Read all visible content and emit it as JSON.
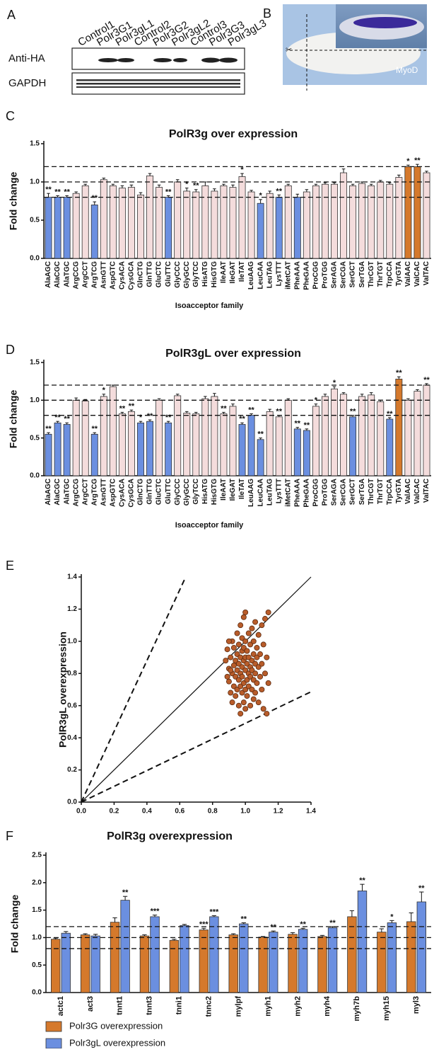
{
  "blot": {
    "panel": "A",
    "lanes": [
      "Control1",
      "Polr3G1",
      "Polr3gL1",
      "Control2",
      "Polr3G2",
      "Polr3gL2",
      "Control3",
      "Polr3G3",
      "Polr3gL3"
    ],
    "rows": [
      "Anti-HA",
      "GAPDH"
    ]
  },
  "embryo": {
    "panel": "B",
    "label": "MyoD"
  },
  "chart_data": [
    {
      "type": "bar",
      "panel": "C",
      "title": "PolR3g over expression",
      "y_label": "Fold change",
      "x_label": "Isoacceptor family",
      "categories": [
        "AlaAGC",
        "AlaCGC",
        "AlaTGC",
        "ArgCCG",
        "ArgCCT",
        "ArgTCG",
        "AsnGTT",
        "AspGTC",
        "CysACA",
        "CysGCA",
        "GlnCTG",
        "GlnTTG",
        "GluCTC",
        "GluTTC",
        "GlyCCC",
        "GlyGCC",
        "GlyTCC",
        "HisATG",
        "HisGTG",
        "IleAAT",
        "IleGAT",
        "IleTAT",
        "LeuAAG",
        "LeuCAA",
        "LeuTAG",
        "LysTTT",
        "iMetCAT",
        "PheAAA",
        "PheGAA",
        "ProCGG",
        "ProTGG",
        "SerAGA",
        "SerCGA",
        "SerGCT",
        "SerTGA",
        "ThrCGT",
        "ThrTGT",
        "TrpCCA",
        "TyrGTA",
        "ValAAC",
        "ValCAC",
        "ValTAC"
      ],
      "values": [
        0.8,
        0.8,
        0.8,
        0.85,
        0.95,
        0.7,
        1.03,
        0.95,
        0.92,
        0.93,
        0.83,
        1.08,
        0.93,
        0.8,
        1.0,
        0.88,
        0.87,
        0.95,
        0.88,
        0.95,
        0.93,
        1.07,
        0.87,
        0.72,
        0.85,
        0.8,
        0.95,
        0.8,
        0.87,
        0.95,
        0.97,
        0.97,
        1.12,
        0.95,
        0.98,
        0.95,
        1.0,
        0.97,
        1.06,
        1.2,
        1.2,
        1.12
      ],
      "errors": [
        0.05,
        0.02,
        0.02,
        0.02,
        0.02,
        0.04,
        0.02,
        0.02,
        0.03,
        0.03,
        0.03,
        0.03,
        0.03,
        0.02,
        0.03,
        0.04,
        0.03,
        0.05,
        0.03,
        0.02,
        0.03,
        0.04,
        0.02,
        0.05,
        0.03,
        0.03,
        0.02,
        0.04,
        0.03,
        0.02,
        0.02,
        0.02,
        0.05,
        0.02,
        0.02,
        0.02,
        0.02,
        0.02,
        0.03,
        0.02,
        0.03,
        0.02
      ],
      "significance": [
        "**",
        "**",
        "**",
        null,
        null,
        "**",
        null,
        null,
        null,
        null,
        null,
        null,
        null,
        "**",
        null,
        "*",
        "**",
        null,
        null,
        null,
        null,
        "*",
        null,
        "*",
        null,
        "**",
        null,
        null,
        null,
        null,
        null,
        null,
        null,
        null,
        null,
        null,
        null,
        null,
        null,
        "*",
        "**",
        null
      ],
      "colors": [
        "#6b8fe0",
        "#6b8fe0",
        "#6b8fe0",
        "#f4dcdc",
        "#f4dcdc",
        "#6b8fe0",
        "#f4dcdc",
        "#f4dcdc",
        "#f4dcdc",
        "#f4dcdc",
        "#f4dcdc",
        "#f4dcdc",
        "#f4dcdc",
        "#6b8fe0",
        "#f4dcdc",
        "#f4dcdc",
        "#f4dcdc",
        "#f4dcdc",
        "#f4dcdc",
        "#f4dcdc",
        "#f4dcdc",
        "#f4dcdc",
        "#f4dcdc",
        "#6b8fe0",
        "#f4dcdc",
        "#6b8fe0",
        "#f4dcdc",
        "#6b8fe0",
        "#f4dcdc",
        "#f4dcdc",
        "#f4dcdc",
        "#f4dcdc",
        "#f4dcdc",
        "#f4dcdc",
        "#f4dcdc",
        "#f4dcdc",
        "#f4dcdc",
        "#f4dcdc",
        "#f4dcdc",
        "#d5792c",
        "#d5792c",
        "#f4dcdc"
      ],
      "ylim": [
        0,
        1.5
      ],
      "yticks": [
        {
          "value": 0,
          "label": "0.0"
        },
        0.5,
        {
          "value": 1,
          "label": "1.0"
        },
        1.5
      ],
      "reference_lines": [
        0.8,
        1,
        1.2
      ]
    },
    {
      "type": "bar",
      "panel": "D",
      "title": "PolR3gL over expression",
      "y_label": "Fold change",
      "x_label": "Isoacceptor family",
      "categories": [
        "AlaAGC",
        "AlaCGC",
        "AlaTGC",
        "ArgCCG",
        "ArgCCT",
        "ArgTCG",
        "AsnGTT",
        "AspGTC",
        "CysACA",
        "CysGCA",
        "GlnCTG",
        "GlnTTG",
        "GluCTC",
        "GluTTC",
        "GlyCCC",
        "GlyGCC",
        "GlyTCC",
        "HisATG",
        "HisGTG",
        "IleAAT",
        "IleGAT",
        "IleTAT",
        "LeuAAG",
        "LeuCAA",
        "LeuTAG",
        "LysTTT",
        "iMetCAT",
        "PheAAA",
        "PheGAA",
        "ProCGG",
        "ProTGG",
        "SerAGA",
        "SerCGA",
        "SerGCT",
        "SerTGA",
        "ThrCGT",
        "ThrTGT",
        "TrpCCA",
        "TyrGTA",
        "ValAAC",
        "ValCAC",
        "ValTAC"
      ],
      "values": [
        0.55,
        0.7,
        0.68,
        1.0,
        0.99,
        0.55,
        1.05,
        1.18,
        0.82,
        0.85,
        0.7,
        0.72,
        1.0,
        0.7,
        1.06,
        0.83,
        0.82,
        1.02,
        1.05,
        0.82,
        0.92,
        0.68,
        0.8,
        0.48,
        0.85,
        0.78,
        1.0,
        0.62,
        0.6,
        0.92,
        1.05,
        1.15,
        1.08,
        0.78,
        1.05,
        1.07,
        0.98,
        0.75,
        1.28,
        1.0,
        1.12,
        1.2
      ],
      "errors": [
        0.02,
        0.02,
        0.02,
        0.03,
        0.02,
        0.02,
        0.03,
        0.02,
        0.02,
        0.02,
        0.02,
        0.02,
        0.02,
        0.02,
        0.02,
        0.02,
        0.02,
        0.03,
        0.04,
        0.02,
        0.03,
        0.02,
        0.02,
        0.02,
        0.03,
        0.02,
        0.02,
        0.02,
        0.02,
        0.03,
        0.03,
        0.03,
        0.02,
        0.02,
        0.03,
        0.03,
        0.02,
        0.02,
        0.03,
        0.02,
        0.02,
        0.02
      ],
      "significance": [
        "**",
        "**",
        "**",
        null,
        null,
        "**",
        "*",
        null,
        "**",
        "**",
        "*",
        "**",
        null,
        "**",
        null,
        null,
        null,
        null,
        null,
        "**",
        null,
        "**",
        "**",
        "**",
        null,
        "**",
        null,
        "**",
        "**",
        "*",
        null,
        "*",
        null,
        "**",
        null,
        null,
        null,
        "**",
        "**",
        null,
        null,
        "**"
      ],
      "colors": [
        "#6b8fe0",
        "#6b8fe0",
        "#6b8fe0",
        "#f4dcdc",
        "#f4dcdc",
        "#6b8fe0",
        "#f4dcdc",
        "#f4dcdc",
        "#f4dcdc",
        "#f4dcdc",
        "#6b8fe0",
        "#6b8fe0",
        "#f4dcdc",
        "#6b8fe0",
        "#f4dcdc",
        "#f4dcdc",
        "#f4dcdc",
        "#f4dcdc",
        "#f4dcdc",
        "#f4dcdc",
        "#f4dcdc",
        "#6b8fe0",
        "#6b8fe0",
        "#6b8fe0",
        "#f4dcdc",
        "#f4dcdc",
        "#f4dcdc",
        "#6b8fe0",
        "#6b8fe0",
        "#f4dcdc",
        "#f4dcdc",
        "#f4dcdc",
        "#f4dcdc",
        "#6b8fe0",
        "#f4dcdc",
        "#f4dcdc",
        "#f4dcdc",
        "#6b8fe0",
        "#d5792c",
        "#f4dcdc",
        "#f4dcdc",
        "#f4dcdc"
      ],
      "ylim": [
        0,
        1.5
      ],
      "yticks": [
        {
          "value": 0,
          "label": "0.0"
        },
        0.5,
        {
          "value": 1,
          "label": "1.0"
        },
        1.5
      ],
      "reference_lines": [
        0.8,
        1,
        1.2
      ]
    },
    {
      "type": "scatter",
      "panel": "E",
      "y_label": "PolR3gL overexpression",
      "color": "#b85c2a",
      "x": [
        0.88,
        0.89,
        0.9,
        0.9,
        0.91,
        0.91,
        0.92,
        0.92,
        0.92,
        0.93,
        0.93,
        0.93,
        0.94,
        0.94,
        0.94,
        0.95,
        0.95,
        0.95,
        0.95,
        0.96,
        0.96,
        0.96,
        0.96,
        0.97,
        0.97,
        0.97,
        0.97,
        0.97,
        0.98,
        0.98,
        0.98,
        0.98,
        0.98,
        0.99,
        0.99,
        0.99,
        0.99,
        0.99,
        1.0,
        1.0,
        1.0,
        1.0,
        1.0,
        1.0,
        1.01,
        1.01,
        1.01,
        1.01,
        1.02,
        1.02,
        1.02,
        1.02,
        1.03,
        1.03,
        1.03,
        1.03,
        1.04,
        1.04,
        1.04,
        1.04,
        1.05,
        1.05,
        1.05,
        1.05,
        1.06,
        1.06,
        1.06,
        1.06,
        1.07,
        1.07,
        1.07,
        1.08,
        1.08,
        1.08,
        1.09,
        1.09,
        1.1,
        1.1,
        1.1,
        1.11,
        1.11,
        1.12,
        1.12,
        1.13,
        1.13,
        1.14,
        1.14,
        0.89,
        0.9,
        0.91
      ],
      "y": [
        0.88,
        0.95,
        0.83,
        0.75,
        0.9,
        0.68,
        0.8,
        1.0,
        0.62,
        0.85,
        0.72,
        0.96,
        0.78,
        0.88,
        0.66,
        0.92,
        0.82,
        0.7,
        1.05,
        0.76,
        0.86,
        0.6,
        0.98,
        0.8,
        0.9,
        0.72,
        1.1,
        0.55,
        0.84,
        0.94,
        0.68,
        1.02,
        0.78,
        0.88,
        0.74,
        0.62,
        1.15,
        0.96,
        0.82,
        0.7,
        0.9,
        1.0,
        0.58,
        1.18,
        0.86,
        0.76,
        0.94,
        0.66,
        0.8,
        1.05,
        0.72,
        0.9,
        0.84,
        0.6,
        0.98,
        0.78,
        0.88,
        0.7,
        1.08,
        0.82,
        0.92,
        0.64,
        0.76,
        1.0,
        0.86,
        0.8,
        0.68,
        1.12,
        0.9,
        0.74,
        0.96,
        0.84,
        0.62,
        1.04,
        0.78,
        0.92,
        0.7,
        1.1,
        0.86,
        0.58,
        0.98,
        0.8,
        1.14,
        0.9,
        0.55,
        1.18,
        0.74,
        0.78,
        1.0,
        0.82
      ],
      "xlim": [
        0,
        1.4
      ],
      "ylim": [
        0,
        1.4
      ],
      "xticks": [
        {
          "value": 0,
          "label": "0.0"
        },
        0.2,
        0.4,
        0.6,
        0.8,
        {
          "value": 1,
          "label": "1.0"
        },
        1.2,
        1.4
      ],
      "yticks": [
        {
          "value": 0,
          "label": "0.0"
        },
        0.2,
        0.4,
        0.6,
        0.8,
        {
          "value": 1,
          "label": "1.0"
        },
        1.2,
        1.4
      ],
      "reference_lines": [
        {
          "slope": 2.2,
          "style": "dashed"
        },
        {
          "slope": 1,
          "style": "solid"
        },
        {
          "slope": 0.49,
          "style": "dashed"
        }
      ]
    },
    {
      "type": "grouped_bar",
      "panel": "F",
      "title": "PolR3g overexpression",
      "y_label": "Fold change",
      "categories": [
        "actc1",
        "act3",
        "tnnt1",
        "tnnt3",
        "tnni1",
        "tnnc2",
        "mylpf",
        "myh1",
        "myh2",
        "myh4",
        "myh7b",
        "myh15",
        "myl3"
      ],
      "series": [
        {
          "name": "Polr3G overexpression",
          "color": "#d5792c",
          "values": [
            0.97,
            1.05,
            1.28,
            1.03,
            0.95,
            1.14,
            1.05,
            1.01,
            1.06,
            1.02,
            1.38,
            1.1,
            1.29
          ],
          "errors": [
            0.02,
            0.02,
            0.08,
            0.02,
            0.02,
            0.03,
            0.02,
            0.01,
            0.03,
            0.02,
            0.11,
            0.06,
            0.16
          ],
          "significance": [
            null,
            null,
            null,
            null,
            null,
            "***",
            null,
            null,
            null,
            null,
            null,
            null,
            null
          ]
        },
        {
          "name": "Polr3gL overexpression",
          "color": "#6b8fe0",
          "values": [
            1.08,
            1.03,
            1.68,
            1.38,
            1.22,
            1.38,
            1.25,
            1.1,
            1.15,
            1.18,
            1.85,
            1.27,
            1.65
          ],
          "errors": [
            0.03,
            0.03,
            0.07,
            0.03,
            0.02,
            0.02,
            0.02,
            0.02,
            0.02,
            0.02,
            0.12,
            0.04,
            0.18
          ],
          "significance": [
            null,
            null,
            "**",
            "***",
            null,
            "***",
            "**",
            "**",
            "**",
            "**",
            "**",
            "*",
            "**"
          ]
        }
      ],
      "ylim": [
        0,
        2.5
      ],
      "yticks": [
        {
          "value": 0,
          "label": "0.0"
        },
        0.5,
        {
          "value": 1,
          "label": "1.0"
        },
        1.5,
        {
          "value": 2,
          "label": "2.0"
        },
        2.5
      ],
      "reference_lines": [
        0.8,
        1,
        1.2
      ]
    }
  ]
}
